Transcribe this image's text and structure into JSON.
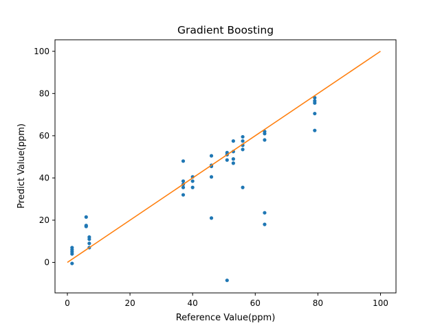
{
  "chart_data": {
    "type": "scatter",
    "title": "Gradient Boosting",
    "xlabel": "Reference Value(ppm)",
    "ylabel": "Predict Value(ppm)",
    "xlim": [
      -3.95,
      104.95
    ],
    "ylim": [
      -14.45,
      105.45
    ],
    "xticks": [
      0,
      20,
      40,
      60,
      80,
      100
    ],
    "yticks": [
      0,
      20,
      40,
      60,
      80,
      100
    ],
    "grid": false,
    "colors": {
      "points": "#1f77b4",
      "line": "#ff7f0e"
    },
    "series": [
      {
        "kind": "scatter",
        "x": [
          1.5,
          1.5,
          1.5,
          1.5,
          1.5,
          6,
          6,
          6,
          7,
          7,
          7,
          7,
          37,
          37,
          37,
          37,
          37,
          40,
          40,
          40,
          46,
          46,
          46,
          46,
          46,
          51,
          51,
          51,
          51,
          53,
          53,
          53,
          53,
          56,
          56,
          56,
          56,
          56,
          63,
          63,
          63,
          63,
          63,
          79,
          79,
          79,
          79,
          79
        ],
        "y": [
          -0.5,
          4,
          5,
          6,
          7,
          21.5,
          17,
          17.5,
          12,
          11,
          9,
          7,
          48,
          38.5,
          37,
          35.5,
          32,
          40.5,
          38.5,
          35.5,
          50.5,
          46,
          45.5,
          40.5,
          21,
          52,
          51,
          48.5,
          -8.5,
          57.5,
          52.5,
          49,
          47,
          59.5,
          57.5,
          55.5,
          53.5,
          35.5,
          62,
          61,
          58,
          23.5,
          18,
          78,
          76.5,
          75.5,
          70.5,
          62.5
        ]
      },
      {
        "kind": "line",
        "x": [
          0,
          100
        ],
        "y": [
          0,
          100
        ]
      }
    ]
  }
}
